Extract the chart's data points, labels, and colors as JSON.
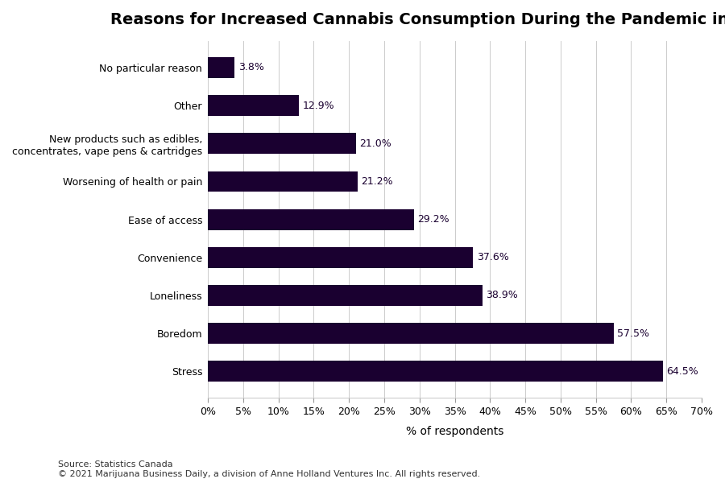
{
  "title": "Reasons for Increased Cannabis Consumption During the Pandemic in Canada",
  "categories": [
    "Stress",
    "Boredom",
    "Loneliness",
    "Convenience",
    "Ease of access",
    "Worsening of health or pain",
    "New products such as edibles,\nconcentrates, vape pens & cartridges",
    "Other",
    "No particular reason"
  ],
  "values": [
    64.5,
    57.5,
    38.9,
    37.6,
    29.2,
    21.2,
    21.0,
    12.9,
    3.8
  ],
  "bar_color": "#1a0030",
  "label_color": "#1a0030",
  "xlabel": "% of respondents",
  "xlim": [
    0,
    70
  ],
  "xticks": [
    0,
    5,
    10,
    15,
    20,
    25,
    30,
    35,
    40,
    45,
    50,
    55,
    60,
    65,
    70
  ],
  "xtick_labels": [
    "0%",
    "5%",
    "10%",
    "15%",
    "20%",
    "25%",
    "30%",
    "35%",
    "40%",
    "45%",
    "50%",
    "55%",
    "60%",
    "65%",
    "70%"
  ],
  "source_text": "Source: Statistics Canada\n© 2021 Marijuana Business Daily, a division of Anne Holland Ventures Inc. All rights reserved.",
  "background_color": "#ffffff",
  "title_fontsize": 14,
  "label_fontsize": 9,
  "value_fontsize": 9,
  "xlabel_fontsize": 10,
  "source_fontsize": 8
}
